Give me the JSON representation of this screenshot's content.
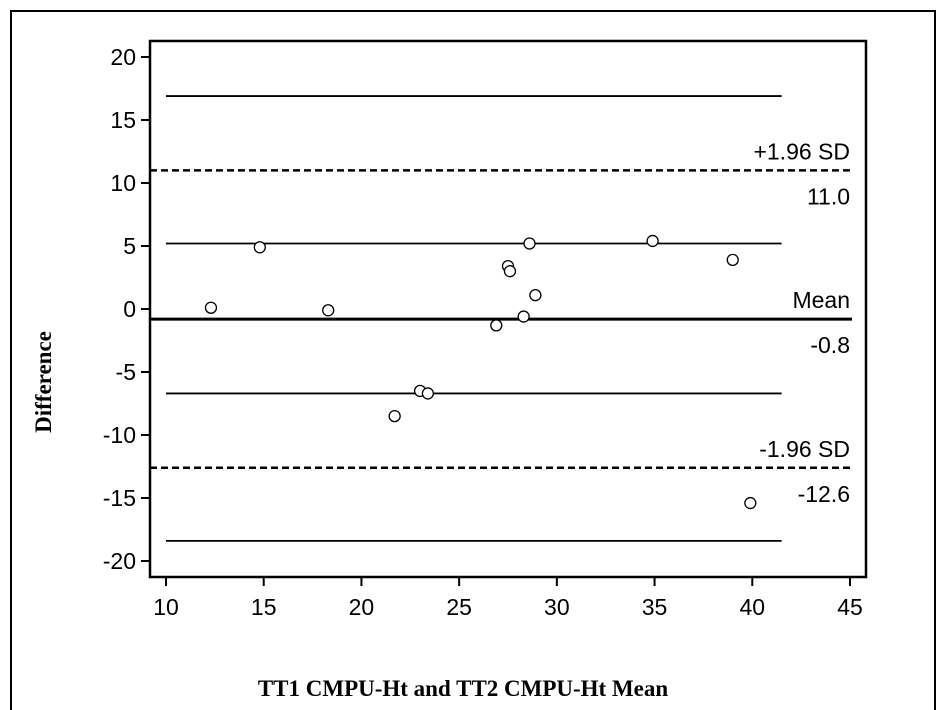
{
  "chart_data": {
    "type": "scatter",
    "title": "",
    "xlabel": "TT1 CMPU-Ht and TT2 CMPU-Ht Mean",
    "ylabel": "Difference",
    "xlim": [
      10,
      45
    ],
    "ylim": [
      -20,
      20
    ],
    "xticks": [
      "10",
      "15",
      "20",
      "25",
      "30",
      "35",
      "40",
      "45"
    ],
    "yticks": [
      "20",
      "15",
      "10",
      "5",
      "0",
      "-5",
      "-10",
      "-15",
      "-20"
    ],
    "grid": false,
    "points": [
      {
        "x": 12.3,
        "y": 0.1
      },
      {
        "x": 14.8,
        "y": 4.9
      },
      {
        "x": 18.3,
        "y": -0.1
      },
      {
        "x": 21.7,
        "y": -8.5
      },
      {
        "x": 23.0,
        "y": -6.5
      },
      {
        "x": 23.4,
        "y": -6.7
      },
      {
        "x": 26.9,
        "y": -1.3
      },
      {
        "x": 27.5,
        "y": 3.4
      },
      {
        "x": 27.6,
        "y": 3.0
      },
      {
        "x": 28.3,
        "y": -0.6
      },
      {
        "x": 28.6,
        "y": 5.2
      },
      {
        "x": 28.9,
        "y": 1.1
      },
      {
        "x": 34.9,
        "y": 5.4
      },
      {
        "x": 39.0,
        "y": 3.9
      },
      {
        "x": 39.9,
        "y": -15.4
      }
    ],
    "reference_lines": [
      {
        "y": 16.9,
        "style": "solid"
      },
      {
        "y": 11.0,
        "style": "dashed",
        "label": "+1.96 SD",
        "value_label": "11.0"
      },
      {
        "y": 5.2,
        "style": "solid"
      },
      {
        "y": -0.8,
        "style": "solid-thick",
        "label": "Mean",
        "value_label": "-0.8"
      },
      {
        "y": -6.7,
        "style": "solid"
      },
      {
        "y": -12.6,
        "style": "dashed",
        "label": "-1.96 SD",
        "value_label": "-12.6"
      },
      {
        "y": -18.4,
        "style": "solid"
      }
    ],
    "reference_line_x_range": [
      10,
      41.5
    ]
  }
}
